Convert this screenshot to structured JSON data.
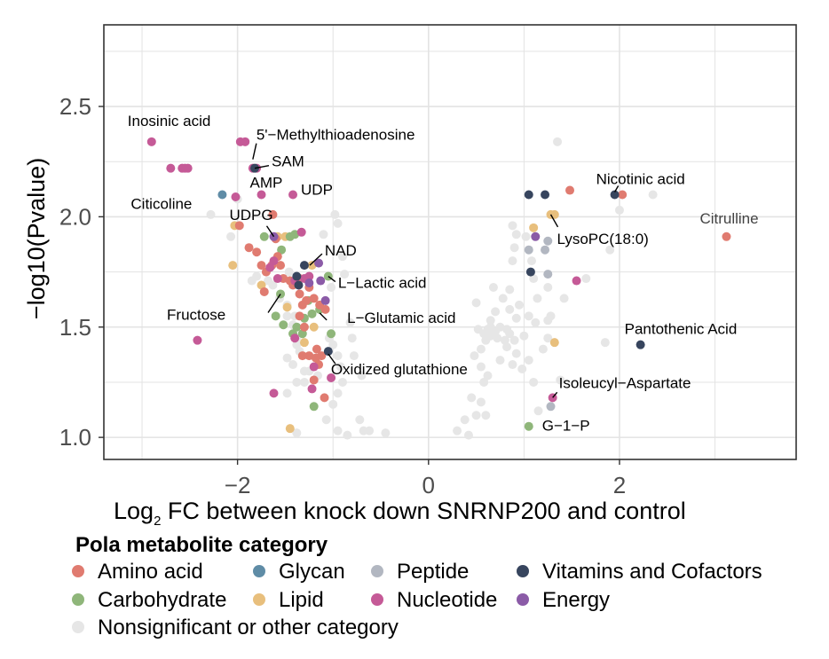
{
  "chart_data": {
    "type": "scatter",
    "xlabel_main": "Log",
    "xlabel_sub": "2",
    "xlabel_rest": " FC between knock down SNRNP200 and control",
    "ylabel": "−log10(Pvalue)",
    "xlim": [
      -3.4,
      3.85
    ],
    "ylim": [
      0.9,
      2.87
    ],
    "x_ticks": [
      -2,
      0,
      2
    ],
    "x_tick_labels": [
      "−2",
      "0",
      "2"
    ],
    "y_ticks": [
      1.0,
      1.5,
      2.0,
      2.5
    ],
    "y_tick_labels": [
      "1.0",
      "1.5",
      "2.0",
      "2.5"
    ],
    "grid": true,
    "legend": {
      "title": "Pola metabolite category",
      "placement": "bottom",
      "items": [
        {
          "key": "amino",
          "label": "Amino acid"
        },
        {
          "key": "glycan",
          "label": "Glycan"
        },
        {
          "key": "peptide",
          "label": "Peptide"
        },
        {
          "key": "vitamin",
          "label": "Vitamins and Cofactors"
        },
        {
          "key": "carb",
          "label": "Carbohydrate"
        },
        {
          "key": "lipid",
          "label": "Lipid"
        },
        {
          "key": "nucleotide",
          "label": "Nucleotide"
        },
        {
          "key": "energy",
          "label": "Energy"
        },
        {
          "key": "nonsig",
          "label": "Nonsignificant or other category"
        }
      ]
    },
    "colors": {
      "amino": "#e07b70",
      "glycan": "#5f8ca6",
      "peptide": "#b2b7c1",
      "vitamin": "#37455e",
      "carb": "#8fb67a",
      "lipid": "#e8bf7d",
      "nucleotide": "#c55a97",
      "energy": "#8b5ba7",
      "nonsig": "#e6e6e6"
    },
    "series": [
      {
        "key": "amino",
        "points": [
          [
            -1.98,
            1.96
          ],
          [
            -1.88,
            1.86
          ],
          [
            -1.8,
            1.84
          ],
          [
            -1.64,
            1.78
          ],
          [
            -1.58,
            1.82
          ],
          [
            -1.55,
            1.78
          ],
          [
            -1.52,
            1.72
          ],
          [
            -1.75,
            1.78
          ],
          [
            -1.7,
            1.75
          ],
          [
            -1.42,
            1.69
          ],
          [
            -1.35,
            1.65
          ],
          [
            -1.32,
            1.6
          ],
          [
            -1.28,
            1.62
          ],
          [
            -1.2,
            1.63
          ],
          [
            -1.14,
            1.6
          ],
          [
            -1.08,
            1.58
          ],
          [
            -1.35,
            1.55
          ],
          [
            -1.3,
            1.5
          ],
          [
            -1.25,
            1.37
          ],
          [
            -1.32,
            1.37
          ],
          [
            -1.18,
            1.36
          ],
          [
            -1.17,
            1.4
          ],
          [
            -1.12,
            1.37
          ],
          [
            -1.15,
            1.33
          ],
          [
            -1.2,
            1.26
          ],
          [
            -1.09,
            1.18
          ],
          [
            -1.63,
            2.01
          ],
          [
            -1.6,
            1.9
          ],
          [
            -1.45,
            1.71
          ],
          [
            -1.35,
            1.72
          ],
          [
            -1.25,
            1.68
          ],
          [
            -1.72,
            1.66
          ],
          [
            1.48,
            2.12
          ],
          [
            2.03,
            2.1
          ],
          [
            3.12,
            1.91
          ]
        ]
      },
      {
        "key": "glycan",
        "points": [
          [
            -2.16,
            2.1
          ]
        ]
      },
      {
        "key": "peptide",
        "points": [
          [
            1.05,
            1.85
          ],
          [
            1.22,
            1.85
          ],
          [
            1.25,
            1.74
          ],
          [
            1.25,
            1.89
          ],
          [
            1.28,
            1.14
          ]
        ]
      },
      {
        "key": "vitamin",
        "points": [
          [
            -1.82,
            2.22
          ],
          [
            -1.3,
            1.78
          ],
          [
            -1.38,
            1.73
          ],
          [
            -1.36,
            1.69
          ],
          [
            -1.05,
            1.39
          ],
          [
            1.05,
            2.1
          ],
          [
            1.07,
            1.75
          ],
          [
            1.22,
            2.1
          ],
          [
            1.95,
            2.1
          ],
          [
            2.22,
            1.42
          ]
        ]
      },
      {
        "key": "carb",
        "points": [
          [
            -1.72,
            1.91
          ],
          [
            -1.54,
            1.85
          ],
          [
            -1.45,
            1.91
          ],
          [
            -1.4,
            1.92
          ],
          [
            -1.55,
            1.65
          ],
          [
            -1.26,
            1.62
          ],
          [
            -1.22,
            1.56
          ],
          [
            -1.14,
            1.58
          ],
          [
            -1.3,
            1.54
          ],
          [
            -1.52,
            1.51
          ],
          [
            -1.38,
            1.5
          ],
          [
            -1.42,
            1.47
          ],
          [
            -1.32,
            1.47
          ],
          [
            -1.02,
            1.47
          ],
          [
            -1.05,
            1.73
          ],
          [
            -1.6,
            1.55
          ],
          [
            -1.2,
            1.14
          ],
          [
            1.05,
            1.05
          ]
        ]
      },
      {
        "key": "lipid",
        "points": [
          [
            -2.03,
            1.96
          ],
          [
            -2.05,
            1.78
          ],
          [
            -1.58,
            1.91
          ],
          [
            -1.5,
            1.91
          ],
          [
            -1.75,
            1.69
          ],
          [
            -1.22,
            1.78
          ],
          [
            -1.48,
            1.59
          ],
          [
            -1.2,
            1.5
          ],
          [
            -1.3,
            1.43
          ],
          [
            -1.45,
            1.04
          ],
          [
            1.28,
            2.01
          ],
          [
            1.32,
            2.01
          ],
          [
            1.1,
            1.95
          ],
          [
            1.32,
            1.43
          ]
        ]
      },
      {
        "key": "nucleotide",
        "points": [
          [
            -2.9,
            2.34
          ],
          [
            -2.7,
            2.22
          ],
          [
            -2.58,
            2.22
          ],
          [
            -2.52,
            2.22
          ],
          [
            -2.55,
            2.22
          ],
          [
            -1.97,
            2.34
          ],
          [
            -1.92,
            2.34
          ],
          [
            -1.8,
            2.22
          ],
          [
            -1.75,
            2.1
          ],
          [
            -1.42,
            2.1
          ],
          [
            -2.02,
            2.09
          ],
          [
            -1.84,
            2.22
          ],
          [
            -1.66,
            1.77
          ],
          [
            -1.62,
            1.8
          ],
          [
            -1.58,
            1.72
          ],
          [
            -1.4,
            1.71
          ],
          [
            -1.3,
            1.72
          ],
          [
            -1.25,
            1.73
          ],
          [
            -1.4,
            1.45
          ],
          [
            -1.33,
            1.93
          ],
          [
            -1.2,
            1.32
          ],
          [
            -1.22,
            1.22
          ],
          [
            -1.02,
            1.27
          ],
          [
            -1.62,
            1.2
          ],
          [
            -2.42,
            1.44
          ],
          [
            1.55,
            1.71
          ],
          [
            1.3,
            1.18
          ]
        ]
      },
      {
        "key": "energy",
        "points": [
          [
            -1.62,
            1.91
          ],
          [
            -1.15,
            1.79
          ],
          [
            -1.25,
            1.7
          ],
          [
            -1.13,
            1.71
          ],
          [
            -1.08,
            1.62
          ],
          [
            1.12,
            1.91
          ]
        ]
      },
      {
        "key": "nonsig",
        "points": [
          [
            -2.28,
            2.01
          ],
          [
            -2.0,
            2.08
          ],
          [
            -2.07,
            1.91
          ],
          [
            -1.8,
            1.73
          ],
          [
            -1.68,
            1.71
          ],
          [
            -1.85,
            1.71
          ],
          [
            -1.63,
            1.69
          ],
          [
            -1.46,
            1.75
          ],
          [
            -1.56,
            1.63
          ],
          [
            -1.48,
            1.6
          ],
          [
            -1.48,
            1.55
          ],
          [
            -1.4,
            1.55
          ],
          [
            -1.42,
            1.51
          ],
          [
            -1.38,
            1.45
          ],
          [
            -1.38,
            1.42
          ],
          [
            -1.35,
            1.39
          ],
          [
            -1.48,
            1.36
          ],
          [
            -1.42,
            1.33
          ],
          [
            -1.3,
            1.3
          ],
          [
            -1.25,
            1.3
          ],
          [
            -1.16,
            1.28
          ],
          [
            -1.3,
            1.25
          ],
          [
            -1.48,
            1.2
          ],
          [
            -1.38,
            1.25
          ],
          [
            -1.04,
            1.45
          ],
          [
            -1.0,
            1.42
          ],
          [
            -0.95,
            1.37
          ],
          [
            -0.92,
            1.32
          ],
          [
            -0.9,
            1.25
          ],
          [
            -0.95,
            1.2
          ],
          [
            -1.0,
            1.15
          ],
          [
            -1.07,
            1.08
          ],
          [
            -0.95,
            1.03
          ],
          [
            -0.85,
            1.01
          ],
          [
            -0.68,
            1.03
          ],
          [
            -0.62,
            1.03
          ],
          [
            -0.45,
            1.02
          ],
          [
            -0.8,
            1.45
          ],
          [
            -0.78,
            1.37
          ],
          [
            -0.82,
            1.52
          ],
          [
            -0.7,
            1.28
          ],
          [
            -0.72,
            1.08
          ],
          [
            -1.38,
            1.02
          ],
          [
            -0.95,
            1.97
          ],
          [
            -0.98,
            2.01
          ],
          [
            -0.9,
            1.82
          ],
          [
            -1.1,
            1.92
          ],
          [
            -0.88,
            1.74
          ],
          [
            -1.02,
            1.68
          ],
          [
            0.3,
            1.03
          ],
          [
            0.38,
            1.08
          ],
          [
            0.42,
            1.01
          ],
          [
            0.5,
            1.1
          ],
          [
            0.55,
            1.16
          ],
          [
            0.6,
            1.1
          ],
          [
            0.45,
            1.18
          ],
          [
            0.58,
            1.25
          ],
          [
            0.62,
            1.28
          ],
          [
            0.48,
            1.37
          ],
          [
            0.55,
            1.4
          ],
          [
            0.6,
            1.44
          ],
          [
            0.65,
            1.46
          ],
          [
            0.7,
            1.48
          ],
          [
            0.72,
            1.45
          ],
          [
            0.58,
            1.47
          ],
          [
            0.52,
            1.49
          ],
          [
            0.8,
            1.44
          ],
          [
            0.85,
            1.47
          ],
          [
            0.9,
            1.44
          ],
          [
            0.82,
            1.41
          ],
          [
            0.92,
            1.38
          ],
          [
            0.75,
            1.35
          ],
          [
            0.88,
            1.33
          ],
          [
            0.98,
            1.31
          ],
          [
            1.0,
            1.46
          ],
          [
            1.05,
            1.35
          ],
          [
            0.65,
            1.53
          ],
          [
            0.7,
            1.57
          ],
          [
            0.78,
            1.63
          ],
          [
            0.85,
            1.67
          ],
          [
            0.92,
            1.54
          ],
          [
            0.68,
            1.68
          ],
          [
            0.5,
            1.61
          ],
          [
            0.65,
            1.5
          ],
          [
            0.55,
            1.32
          ],
          [
            0.85,
            1.58
          ],
          [
            0.95,
            1.6
          ],
          [
            0.82,
            1.49
          ],
          [
            0.75,
            1.5
          ],
          [
            0.62,
            1.49
          ],
          [
            0.88,
            1.96
          ],
          [
            0.92,
            1.92
          ],
          [
            0.9,
            1.86
          ],
          [
            0.88,
            1.8
          ],
          [
            1.02,
            1.91
          ],
          [
            1.08,
            1.8
          ],
          [
            1.1,
            1.72
          ],
          [
            1.14,
            1.63
          ],
          [
            1.05,
            1.55
          ],
          [
            1.25,
            1.53
          ],
          [
            1.12,
            1.52
          ],
          [
            1.25,
            1.45
          ],
          [
            1.2,
            1.4
          ],
          [
            1.1,
            1.25
          ],
          [
            1.38,
            1.26
          ],
          [
            1.15,
            1.12
          ],
          [
            1.25,
            1.68
          ],
          [
            1.42,
            1.63
          ],
          [
            1.35,
            2.34
          ],
          [
            1.85,
            1.43
          ],
          [
            1.9,
            1.85
          ],
          [
            2.35,
            2.1
          ],
          [
            2.0,
            2.03
          ],
          [
            1.65,
            1.72
          ],
          [
            1.28,
            1.55
          ]
        ]
      }
    ],
    "annotations": [
      {
        "text": "Inosinic acid",
        "x": -2.9,
        "y": 2.34,
        "style": "black"
      },
      {
        "text": "5'−Methylthioadenosine",
        "x": -1.84,
        "y": 2.22,
        "style": "black"
      },
      {
        "text": "SAM",
        "x": -1.82,
        "y": 2.22,
        "style": "black"
      },
      {
        "text": "AMP",
        "x": -1.75,
        "y": 2.1,
        "style": "black"
      },
      {
        "text": "UDP",
        "x": -1.42,
        "y": 2.1,
        "style": "black"
      },
      {
        "text": "Citicoline",
        "x": -2.16,
        "y": 2.1,
        "style": "black"
      },
      {
        "text": "UDPG",
        "x": -1.62,
        "y": 1.91,
        "style": "black"
      },
      {
        "text": "NAD",
        "x": -1.3,
        "y": 1.78,
        "style": "black"
      },
      {
        "text": "L−Lactic acid",
        "x": -1.05,
        "y": 1.73,
        "style": "black"
      },
      {
        "text": "Fructose",
        "x": -1.55,
        "y": 1.65,
        "style": "black"
      },
      {
        "text": "L−Glutamic acid",
        "x": -1.14,
        "y": 1.58,
        "style": "black"
      },
      {
        "text": "Oxidized glutathione",
        "x": -1.05,
        "y": 1.39,
        "style": "black"
      },
      {
        "text": "Nicotinic acid",
        "x": 1.95,
        "y": 2.1,
        "style": "black"
      },
      {
        "text": "LysoPC(18:0)",
        "x": 1.28,
        "y": 2.01,
        "style": "black"
      },
      {
        "text": "Citrulline",
        "x": 3.12,
        "y": 1.91,
        "style": "grey"
      },
      {
        "text": "Pantothenic Acid",
        "x": 2.22,
        "y": 1.42,
        "style": "black"
      },
      {
        "text": "Isoleucyl−Aspartate",
        "x": 1.3,
        "y": 1.18,
        "style": "black"
      },
      {
        "text": "G−1−P",
        "x": 1.05,
        "y": 1.05,
        "style": "black"
      }
    ]
  }
}
